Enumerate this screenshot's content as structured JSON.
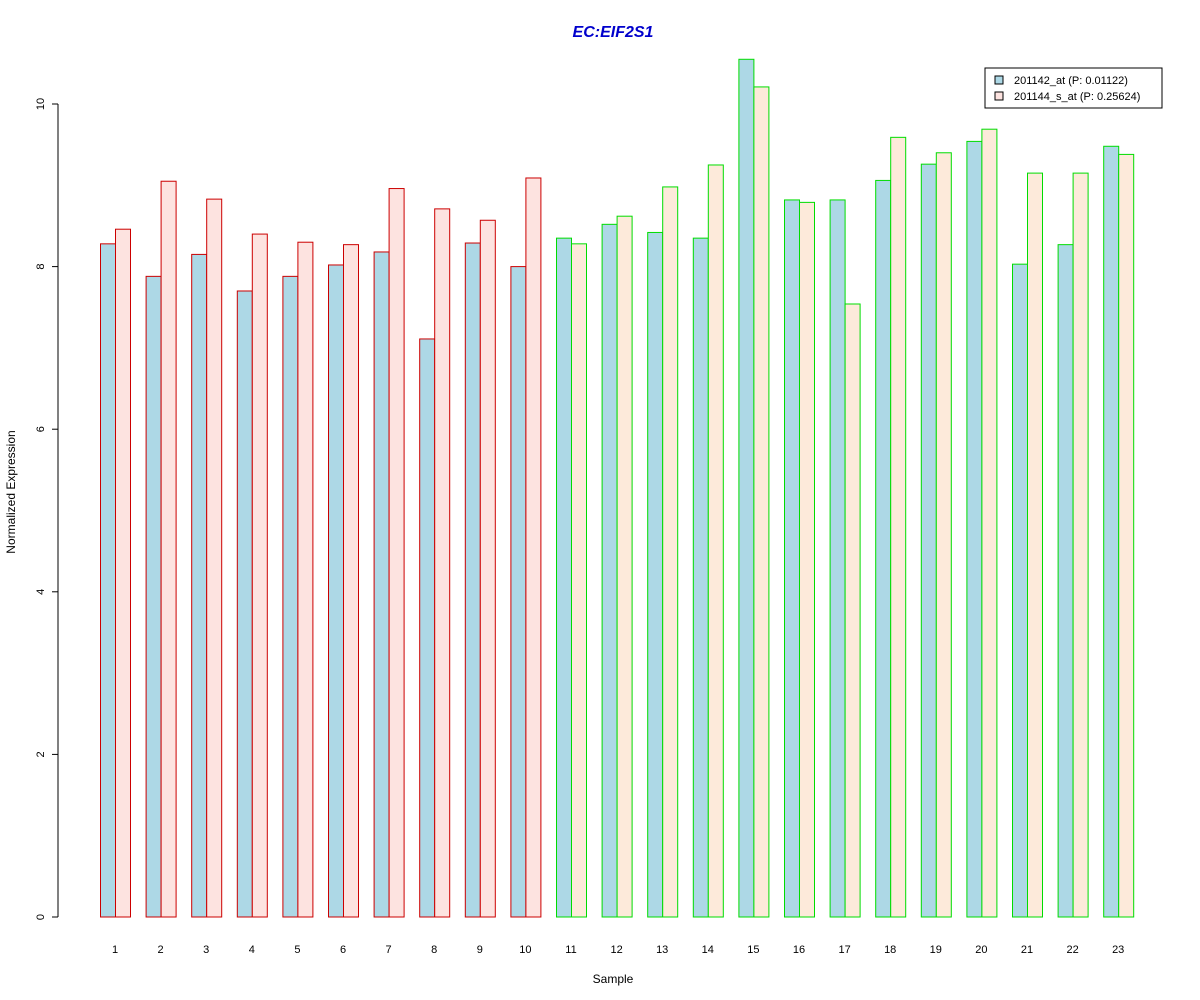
{
  "chart_data": {
    "type": "bar",
    "title": "EC:EIF2S1",
    "xlabel": "Sample",
    "ylabel": "Normalized Expression",
    "ylim": [
      0,
      10.6
    ],
    "yticks": [
      "0",
      "2",
      "4",
      "6",
      "8",
      "10"
    ],
    "categories": [
      "1",
      "2",
      "3",
      "4",
      "5",
      "6",
      "7",
      "8",
      "9",
      "10",
      "11",
      "12",
      "13",
      "14",
      "15",
      "16",
      "17",
      "18",
      "19",
      "20",
      "21",
      "22",
      "23"
    ],
    "group_border_colors": [
      "#cc0000",
      "#cc0000",
      "#cc0000",
      "#cc0000",
      "#cc0000",
      "#cc0000",
      "#cc0000",
      "#cc0000",
      "#cc0000",
      "#cc0000",
      "#00dd00",
      "#00dd00",
      "#00dd00",
      "#00dd00",
      "#00dd00",
      "#00dd00",
      "#00dd00",
      "#00dd00",
      "#00dd00",
      "#00dd00",
      "#00dd00",
      "#00dd00",
      "#00dd00"
    ],
    "series": [
      {
        "name": "201142_at (P: 0.01122)",
        "fill": "#add8e6",
        "values": [
          8.28,
          7.88,
          8.15,
          7.7,
          7.88,
          8.02,
          8.18,
          7.11,
          8.29,
          8.0,
          8.35,
          8.52,
          8.42,
          8.35,
          10.55,
          8.82,
          8.82,
          9.06,
          9.26,
          9.54,
          8.03,
          8.27,
          9.48
        ]
      },
      {
        "name": "201144_s_at (P: 0.25624)",
        "fill_red_group": "#fde3e0",
        "fill_green_group": "#fdeada",
        "values": [
          8.46,
          9.05,
          8.83,
          8.4,
          8.3,
          8.27,
          8.96,
          8.71,
          8.57,
          9.09,
          8.28,
          8.62,
          8.98,
          9.25,
          10.21,
          8.79,
          7.54,
          9.59,
          9.4,
          9.69,
          9.15,
          9.15,
          9.38
        ]
      }
    ],
    "legend": {
      "position": "top-right"
    },
    "grid": false
  }
}
